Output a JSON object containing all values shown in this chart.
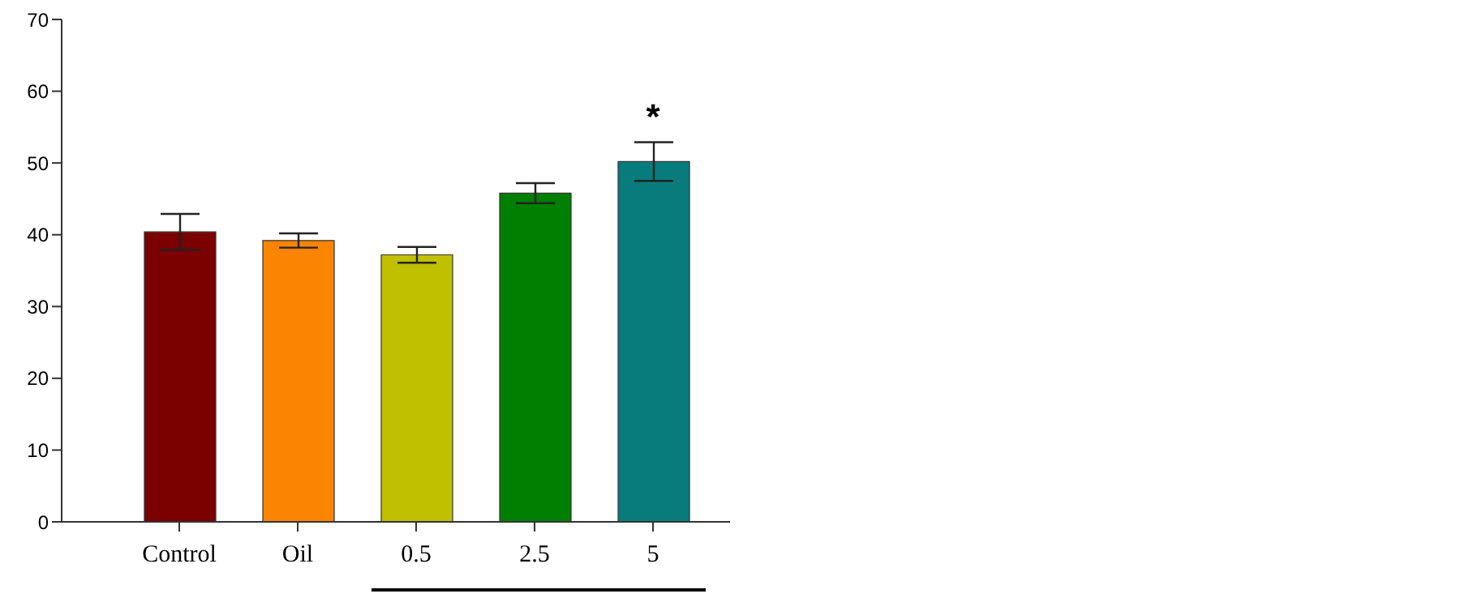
{
  "chart_data": {
    "type": "bar",
    "categories": [
      "Control",
      "Oil",
      "0.5",
      "2.5",
      "5"
    ],
    "values": [
      40.4,
      39.2,
      37.2,
      45.8,
      50.2
    ],
    "errors": [
      2.5,
      1.0,
      1.1,
      1.4,
      2.7
    ],
    "colors": [
      "#7b0000",
      "#fb8500",
      "#c0c000",
      "#007f00",
      "#087c7c"
    ],
    "ylim": [
      0,
      70
    ],
    "yticks": [
      0,
      10,
      20,
      30,
      40,
      50,
      60,
      70
    ],
    "annotations": [
      {
        "text": "*",
        "x": "5",
        "y": 50.2
      }
    ],
    "grid": false,
    "legend": false
  }
}
